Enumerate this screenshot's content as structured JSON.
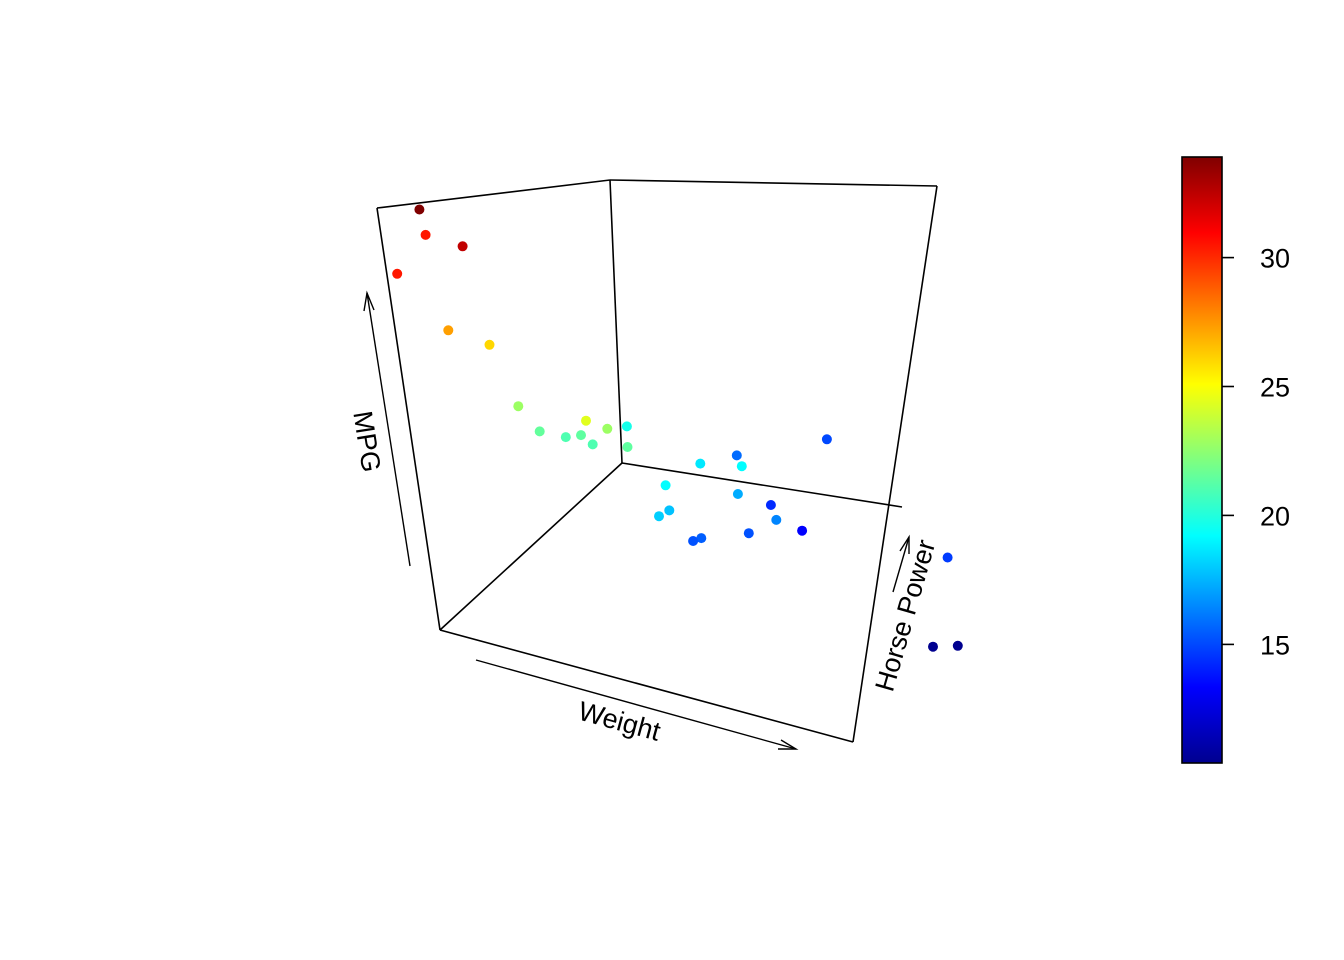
{
  "chart_data": {
    "type": "scatter",
    "subtype": "3d-scatter",
    "title": "",
    "xlabel": "Weight",
    "ylabel": "Horse Power",
    "zlabel": "MPG",
    "color_variable": "MPG",
    "colormap": "jet",
    "grid": false,
    "legend": "colorbar-right",
    "colorbar": {
      "ticks": [
        "15",
        "20",
        "25",
        "30"
      ],
      "range": [
        10.4,
        33.9
      ],
      "colors": [
        "#00008f",
        "#0000ff",
        "#00ffff",
        "#ffff00",
        "#ff0000",
        "#800000"
      ]
    },
    "points": [
      {
        "weight": 2.62,
        "hp": 110,
        "mpg": 21.0
      },
      {
        "weight": 2.875,
        "hp": 110,
        "mpg": 21.0
      },
      {
        "weight": 2.32,
        "hp": 93,
        "mpg": 22.8
      },
      {
        "weight": 3.215,
        "hp": 110,
        "mpg": 21.4
      },
      {
        "weight": 3.44,
        "hp": 175,
        "mpg": 18.7
      },
      {
        "weight": 3.46,
        "hp": 105,
        "mpg": 18.1
      },
      {
        "weight": 3.57,
        "hp": 245,
        "mpg": 14.3
      },
      {
        "weight": 3.19,
        "hp": 62,
        "mpg": 24.4
      },
      {
        "weight": 3.15,
        "hp": 95,
        "mpg": 22.8
      },
      {
        "weight": 3.44,
        "hp": 123,
        "mpg": 19.2
      },
      {
        "weight": 3.44,
        "hp": 123,
        "mpg": 17.8
      },
      {
        "weight": 4.07,
        "hp": 180,
        "mpg": 16.4
      },
      {
        "weight": 3.73,
        "hp": 180,
        "mpg": 17.3
      },
      {
        "weight": 3.78,
        "hp": 180,
        "mpg": 15.2
      },
      {
        "weight": 5.25,
        "hp": 205,
        "mpg": 10.4
      },
      {
        "weight": 5.424,
        "hp": 215,
        "mpg": 10.4
      },
      {
        "weight": 5.345,
        "hp": 230,
        "mpg": 14.7
      },
      {
        "weight": 2.2,
        "hp": 66,
        "mpg": 32.4
      },
      {
        "weight": 1.615,
        "hp": 52,
        "mpg": 30.4
      },
      {
        "weight": 1.835,
        "hp": 65,
        "mpg": 33.9
      },
      {
        "weight": 2.465,
        "hp": 97,
        "mpg": 21.5
      },
      {
        "weight": 3.52,
        "hp": 150,
        "mpg": 15.5
      },
      {
        "weight": 3.435,
        "hp": 150,
        "mpg": 15.2
      },
      {
        "weight": 3.84,
        "hp": 245,
        "mpg": 13.3
      },
      {
        "weight": 3.845,
        "hp": 175,
        "mpg": 19.2
      },
      {
        "weight": 1.935,
        "hp": 66,
        "mpg": 27.3
      },
      {
        "weight": 2.14,
        "hp": 91,
        "mpg": 26.0
      },
      {
        "weight": 1.513,
        "hp": 113,
        "mpg": 30.4
      },
      {
        "weight": 3.17,
        "hp": 264,
        "mpg": 15.8
      },
      {
        "weight": 2.77,
        "hp": 175,
        "mpg": 19.7
      },
      {
        "weight": 3.57,
        "hp": 335,
        "mpg": 15.0
      },
      {
        "weight": 2.78,
        "hp": 109,
        "mpg": 21.4
      }
    ]
  }
}
